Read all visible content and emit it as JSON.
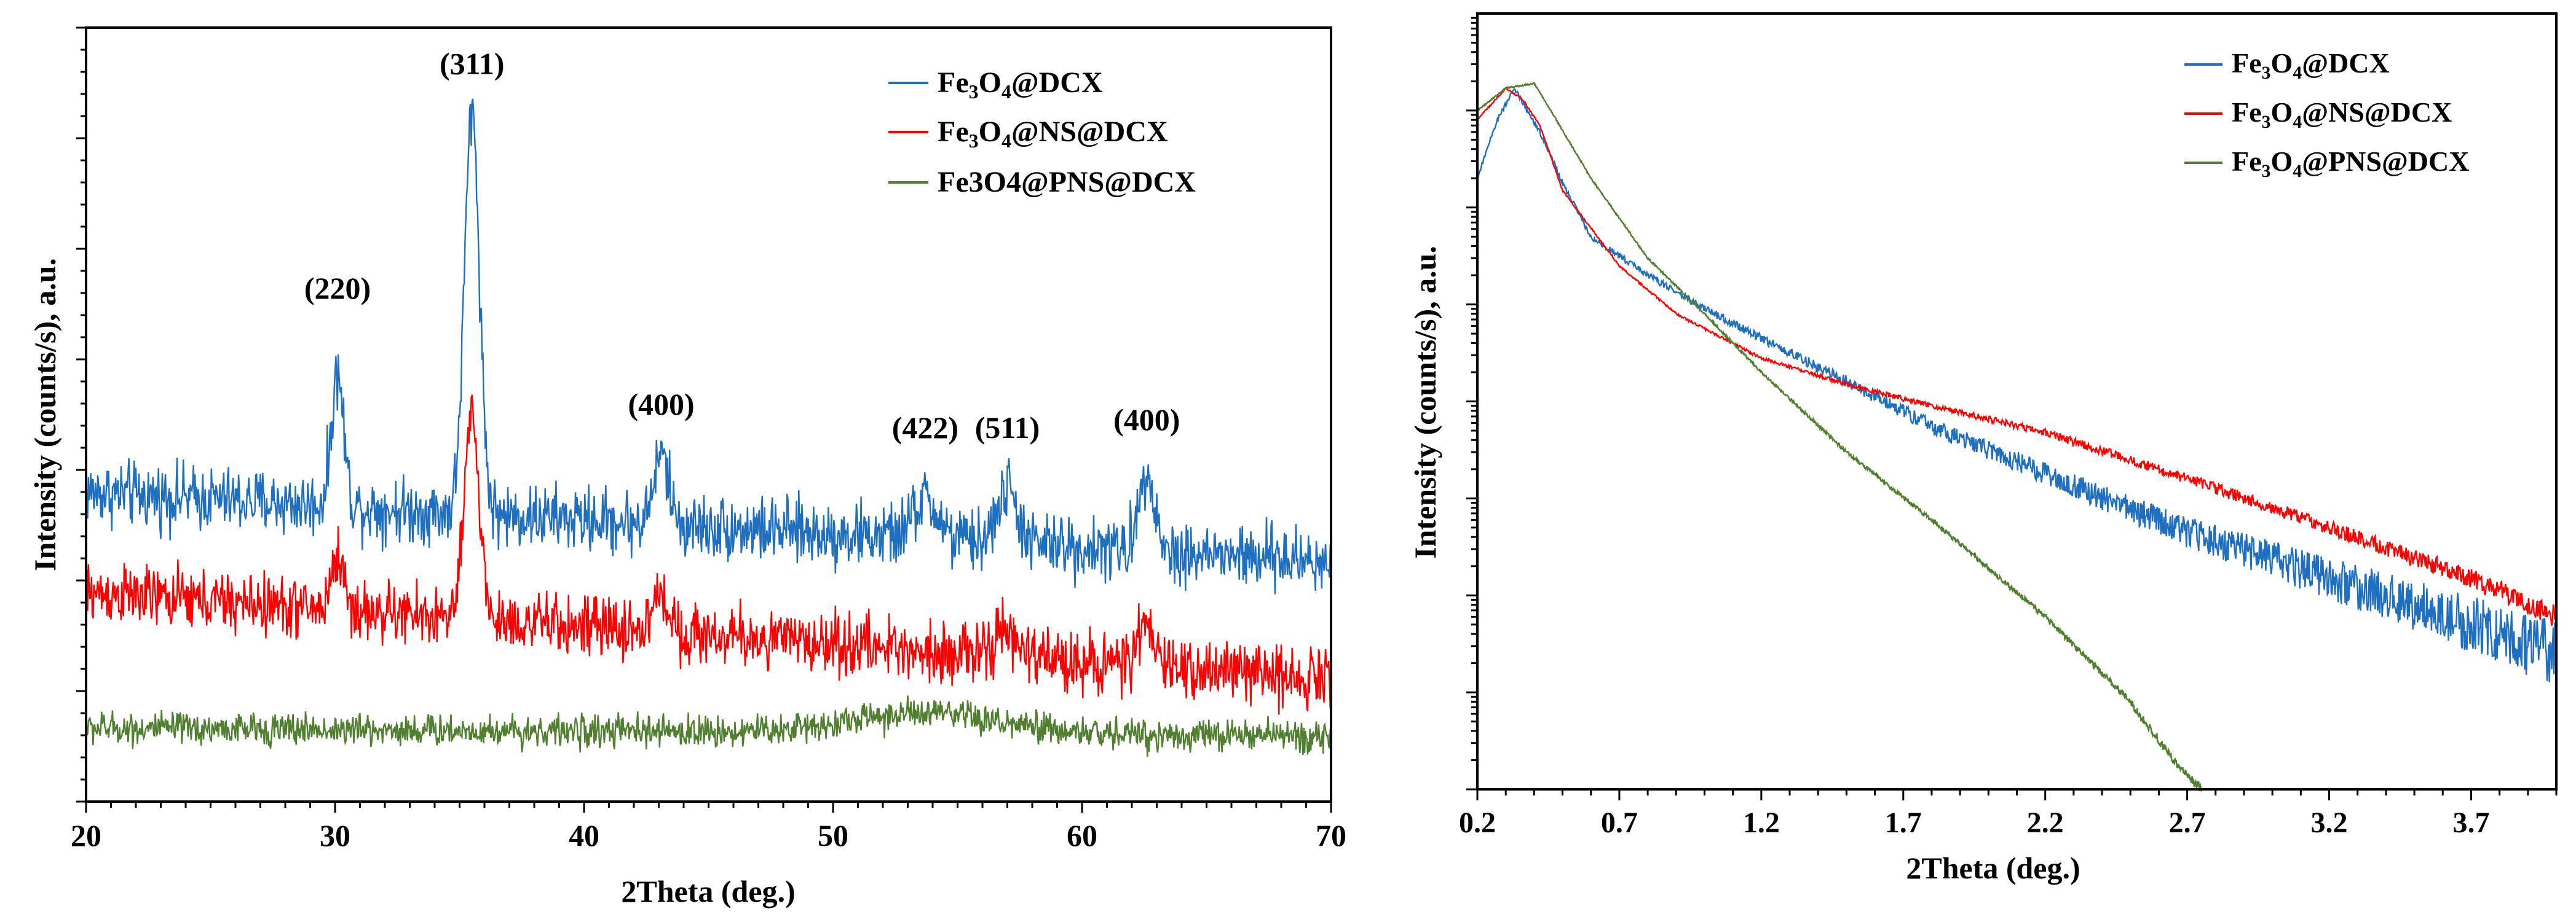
{
  "chart_data": [
    {
      "type": "line",
      "panel": "left",
      "title": "",
      "xlabel": "2Theta (deg.)",
      "ylabel": "Intensity (counts/s), a.u.",
      "xlim": [
        20,
        70
      ],
      "ylim": [
        0,
        100
      ],
      "y_ticks_labeled": false,
      "x_ticks": [
        20,
        30,
        40,
        50,
        60,
        70
      ],
      "x_tick_labels": [
        "20",
        "30",
        "40",
        "50",
        "60",
        "70"
      ],
      "legend_position": "top-right",
      "series": [
        {
          "name_main": "Fe",
          "name_sub1": "3",
          "name_mid": "O",
          "name_sub2": "4",
          "name_tail": "@DCX",
          "color": "#1f6fc0",
          "baseline": 40,
          "baseline_end": 31,
          "noise": 3.2,
          "peaks": [
            [
              30.1,
              17,
              0.25
            ],
            [
              35.5,
              52,
              0.3
            ],
            [
              43.1,
              9,
              0.3
            ],
            [
              53.7,
              5,
              0.5
            ],
            [
              57.0,
              7,
              0.4
            ],
            [
              62.6,
              11,
              0.3
            ]
          ]
        },
        {
          "name_main": "Fe",
          "name_sub1": "3",
          "name_mid": "O",
          "name_sub2": "4",
          "name_tail": "@NS@DCX",
          "color": "#ff0000",
          "baseline": 27,
          "baseline_end": 16,
          "noise": 3.0,
          "peaks": [
            [
              30.1,
              7,
              0.25
            ],
            [
              35.5,
              26,
              0.3
            ],
            [
              43.1,
              5,
              0.3
            ],
            [
              57.0,
              3,
              0.4
            ],
            [
              62.6,
              5,
              0.3
            ]
          ]
        },
        {
          "name": "Fe3O4@PNS@DCX",
          "color": "#4f7f2f",
          "baseline": 9.5,
          "baseline_end": 8.5,
          "noise": 1.6,
          "peaks": [
            [
              53.5,
              2.5,
              3.0
            ]
          ]
        }
      ],
      "annotations": [
        {
          "text": "(220)",
          "x": 30.1,
          "y": 65
        },
        {
          "text": "(311)",
          "x": 35.5,
          "y": 94
        },
        {
          "text": "(400)",
          "x": 43.1,
          "y": 50
        },
        {
          "text": "(422)",
          "x": 53.7,
          "y": 47
        },
        {
          "text": "(511)",
          "x": 57.0,
          "y": 47
        },
        {
          "text": "(400)",
          "x": 62.6,
          "y": 48
        }
      ]
    },
    {
      "type": "line",
      "panel": "right",
      "y_scale": "log",
      "title": "",
      "xlabel": "2Theta (deg.)",
      "ylabel": "Intensity (counts/s), a.u.",
      "xlim": [
        0.2,
        4.0
      ],
      "ylim": [
        1,
        100000000
      ],
      "y_ticks_labeled": false,
      "x_ticks": [
        0.2,
        0.7,
        1.2,
        1.7,
        2.2,
        2.7,
        3.2,
        3.7
      ],
      "x_tick_labels": [
        "0.2",
        "0.7",
        "1.2",
        "1.7",
        "2.2",
        "2.7",
        "3.2",
        "3.7"
      ],
      "legend_position": "top-right",
      "series": [
        {
          "name_main": "Fe",
          "name_sub1": "3",
          "name_mid": "O",
          "name_sub2": "4",
          "name_tail": "@DCX",
          "color": "#1f6fc0",
          "start_x": 0.2,
          "points": [
            [
              0.2,
              2000000
            ],
            [
              0.27,
              8000000
            ],
            [
              0.33,
              17000000
            ],
            [
              0.42,
              6000000
            ],
            [
              0.5,
              1800000
            ],
            [
              0.6,
              500000
            ],
            [
              0.8,
              200000
            ],
            [
              1.0,
              90000
            ],
            [
              1.2,
              45000
            ],
            [
              1.5,
              16000
            ],
            [
              1.8,
              5500
            ],
            [
              2.2,
              1800
            ],
            [
              2.7,
              450
            ],
            [
              3.2,
              150
            ],
            [
              3.7,
              50
            ],
            [
              4.0,
              25
            ]
          ],
          "noise_frac": 0.35
        },
        {
          "name_main": "Fe",
          "name_sub1": "3",
          "name_mid": "O",
          "name_sub2": "4",
          "name_tail": "@NS@DCX",
          "color": "#ff0000",
          "start_x": 0.2,
          "points": [
            [
              0.2,
              8000000
            ],
            [
              0.3,
              17000000
            ],
            [
              0.36,
              13000000
            ],
            [
              0.42,
              7000000
            ],
            [
              0.5,
              1500000
            ],
            [
              0.7,
              250000
            ],
            [
              0.9,
              80000
            ],
            [
              1.2,
              28000
            ],
            [
              1.5,
              15000
            ],
            [
              1.8,
              9000
            ],
            [
              2.2,
              4800
            ],
            [
              2.7,
              1600
            ],
            [
              3.2,
              500
            ],
            [
              3.7,
              150
            ],
            [
              4.0,
              60
            ]
          ],
          "noise_frac": 0.12
        },
        {
          "name_main": "Fe",
          "name_sub1": "3",
          "name_mid": "O",
          "name_sub2": "4",
          "name_tail": "@PNS@DCX",
          "color": "#4f7f2f",
          "start_x": 0.2,
          "end_x": 2.75,
          "points": [
            [
              0.2,
              10000000
            ],
            [
              0.3,
              17000000
            ],
            [
              0.4,
              19000000
            ],
            [
              0.45,
              11000000
            ],
            [
              0.6,
              2000000
            ],
            [
              0.8,
              300000
            ],
            [
              1.0,
              80000
            ],
            [
              1.2,
              20000
            ],
            [
              1.5,
              3000
            ],
            [
              1.8,
              600
            ],
            [
              2.2,
              60
            ],
            [
              2.5,
              8
            ],
            [
              2.65,
              2
            ],
            [
              2.75,
              1
            ]
          ],
          "noise_frac": 0.1
        }
      ]
    }
  ]
}
